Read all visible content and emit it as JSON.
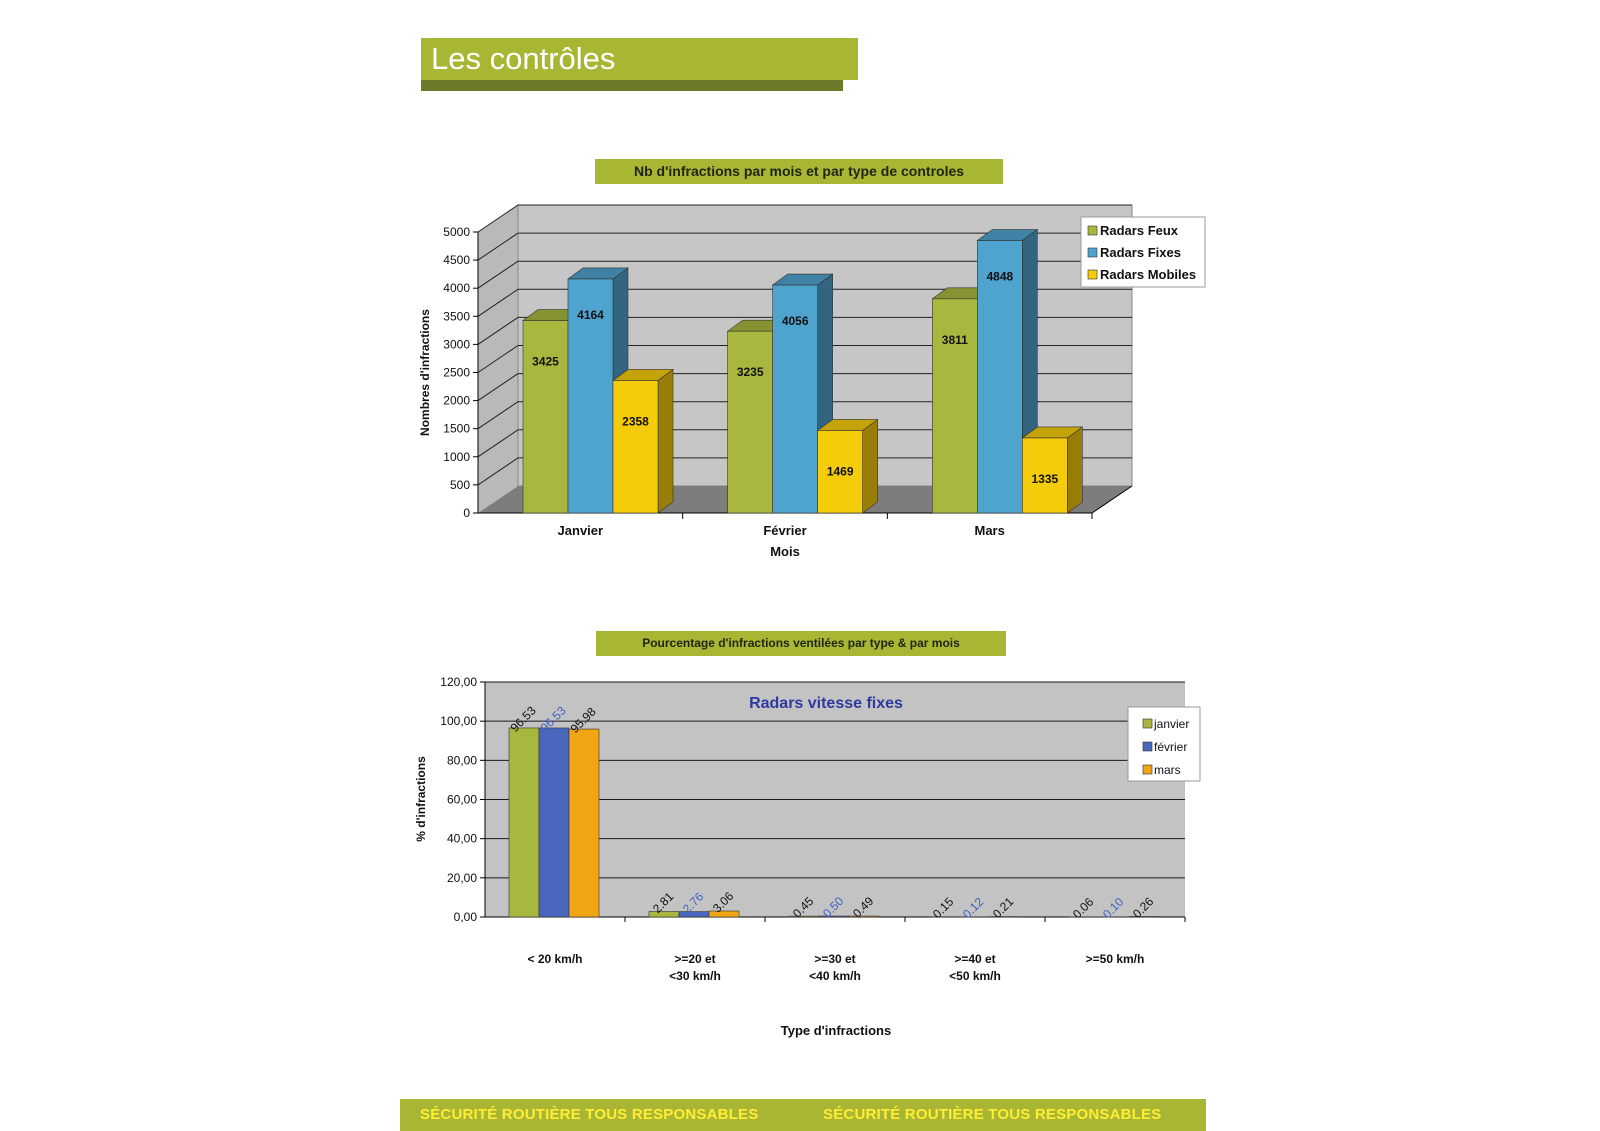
{
  "header": {
    "title": "Les contrôles"
  },
  "footer": {
    "slogan_left": "SÉCURITÉ ROUTIÈRE TOUS RESPONSABLES",
    "slogan_right": "SÉCURITÉ ROUTIÈRE TOUS RESPONSABLES"
  },
  "colors": {
    "accent_green": "#a9b634",
    "dark_green": "#6d7a2a",
    "footer_text": "#ffee33"
  },
  "chart_data": [
    {
      "type": "bar",
      "title": "Nb d'infractions par mois et par type de controles",
      "xlabel": "Mois",
      "ylabel": "Nombres d'infractions",
      "categories": [
        "Janvier",
        "Février",
        "Mars"
      ],
      "ylim": [
        0,
        5000
      ],
      "yticks": [
        "0",
        "500",
        "1000",
        "1500",
        "2000",
        "2500",
        "3000",
        "3500",
        "4000",
        "4500",
        "5000"
      ],
      "grid": true,
      "legend_position": "top-right",
      "series": [
        {
          "name": "Radars Feux",
          "color": "#a9b73f",
          "values": [
            3425,
            3235,
            3811
          ]
        },
        {
          "name": "Radars Fixes",
          "color": "#4fa3cf",
          "values": [
            4164,
            4056,
            4848
          ]
        },
        {
          "name": "Radars Mobiles",
          "color": "#f5cc0a",
          "values": [
            2358,
            1469,
            1335
          ]
        }
      ]
    },
    {
      "type": "bar",
      "title": "Pourcentage d'infractions ventilées par type & par mois",
      "subtitle": "Radars vitesse fixes",
      "xlabel": "Type d'infractions",
      "ylabel": "% d'infractions",
      "categories": [
        "< 20 km/h",
        ">=20 et\n<30 km/h",
        ">=30 et\n<40 km/h",
        ">=40 et\n<50 km/h",
        ">=50 km/h"
      ],
      "ylim": [
        0,
        120
      ],
      "yticks": [
        "0,00",
        "20,00",
        "40,00",
        "60,00",
        "80,00",
        "100,00",
        "120,00"
      ],
      "grid": true,
      "legend_position": "top-right",
      "series": [
        {
          "name": "janvier",
          "color": "#a9b73f",
          "values": [
            96.53,
            2.81,
            0.45,
            0.15,
            0.06
          ],
          "labels": [
            "96.53",
            "2.81",
            "0.45",
            "0.15",
            "0.06"
          ]
        },
        {
          "name": "février",
          "color": "#4968bd",
          "values": [
            96.53,
            2.76,
            0.5,
            0.12,
            0.1
          ],
          "labels": [
            "96.53",
            "2.76",
            "0.50",
            "0.12",
            "0.10"
          ]
        },
        {
          "name": "mars",
          "color": "#f0a514",
          "values": [
            95.98,
            3.06,
            0.49,
            0.21,
            0.26
          ],
          "labels": [
            "95.98",
            "3.06",
            "0.49",
            "0.21",
            "0.26"
          ]
        }
      ]
    }
  ]
}
